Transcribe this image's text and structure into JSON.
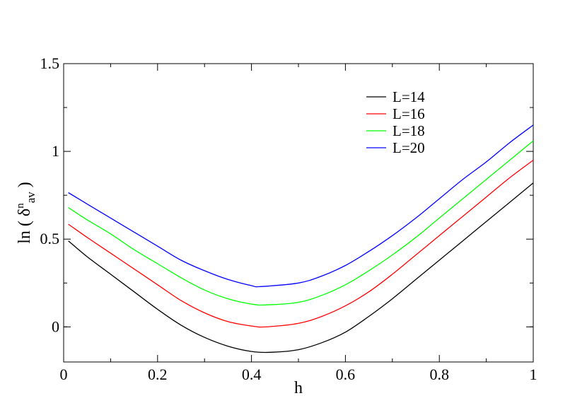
{
  "chart_data": {
    "type": "line",
    "xlabel": "h",
    "ylabel": {
      "prefix": "ln ( δ",
      "superscript": "n",
      "subscript": "av",
      "suffix": " )"
    },
    "xlim": [
      0,
      1
    ],
    "ylim": [
      -0.2,
      1.5
    ],
    "xticks": [
      {
        "value": 0,
        "label": "0"
      },
      {
        "value": 0.2,
        "label": "0.2"
      },
      {
        "value": 0.4,
        "label": "0.4"
      },
      {
        "value": 0.6,
        "label": "0.6"
      },
      {
        "value": 0.8,
        "label": "0.8"
      },
      {
        "value": 1,
        "label": "1"
      }
    ],
    "yticks": [
      {
        "value": 0,
        "label": "0"
      },
      {
        "value": 0.5,
        "label": "0.5"
      },
      {
        "value": 1,
        "label": "1"
      },
      {
        "value": 1.5,
        "label": "1.5"
      }
    ],
    "grid": false,
    "legend_position": "top-right",
    "series": [
      {
        "name": "L=14",
        "color": "#000000",
        "x": [
          0.01,
          0.05,
          0.1,
          0.15,
          0.2,
          0.25,
          0.3,
          0.35,
          0.4,
          0.44,
          0.5,
          0.55,
          0.6,
          0.65,
          0.7,
          0.75,
          0.8,
          0.85,
          0.9,
          0.95,
          1.0
        ],
        "y": [
          0.49,
          0.4,
          0.3,
          0.2,
          0.1,
          0.01,
          -0.06,
          -0.11,
          -0.14,
          -0.145,
          -0.13,
          -0.09,
          -0.03,
          0.06,
          0.16,
          0.27,
          0.38,
          0.49,
          0.6,
          0.71,
          0.82
        ]
      },
      {
        "name": "L=16",
        "color": "#ff0000",
        "x": [
          0.01,
          0.05,
          0.1,
          0.15,
          0.2,
          0.25,
          0.3,
          0.35,
          0.4,
          0.43,
          0.5,
          0.55,
          0.6,
          0.65,
          0.7,
          0.75,
          0.8,
          0.85,
          0.9,
          0.95,
          1.0
        ],
        "y": [
          0.585,
          0.51,
          0.42,
          0.33,
          0.24,
          0.15,
          0.08,
          0.03,
          0.005,
          0.0,
          0.02,
          0.06,
          0.12,
          0.2,
          0.3,
          0.41,
          0.52,
          0.63,
          0.74,
          0.85,
          0.95
        ]
      },
      {
        "name": "L=18",
        "color": "#00ff00",
        "x": [
          0.01,
          0.05,
          0.1,
          0.15,
          0.2,
          0.25,
          0.3,
          0.35,
          0.4,
          0.43,
          0.5,
          0.55,
          0.6,
          0.65,
          0.7,
          0.75,
          0.8,
          0.85,
          0.9,
          0.95,
          1.0
        ],
        "y": [
          0.68,
          0.61,
          0.53,
          0.44,
          0.36,
          0.28,
          0.21,
          0.16,
          0.13,
          0.125,
          0.14,
          0.18,
          0.24,
          0.32,
          0.41,
          0.51,
          0.62,
          0.73,
          0.84,
          0.95,
          1.06
        ]
      },
      {
        "name": "L=20",
        "color": "#0000ff",
        "x": [
          0.01,
          0.05,
          0.1,
          0.15,
          0.2,
          0.25,
          0.3,
          0.35,
          0.4,
          0.42,
          0.5,
          0.55,
          0.6,
          0.65,
          0.7,
          0.75,
          0.8,
          0.85,
          0.9,
          0.95,
          1.0
        ],
        "y": [
          0.765,
          0.7,
          0.62,
          0.54,
          0.46,
          0.38,
          0.32,
          0.27,
          0.235,
          0.23,
          0.25,
          0.29,
          0.35,
          0.43,
          0.52,
          0.62,
          0.73,
          0.84,
          0.94,
          1.05,
          1.15
        ]
      }
    ]
  }
}
